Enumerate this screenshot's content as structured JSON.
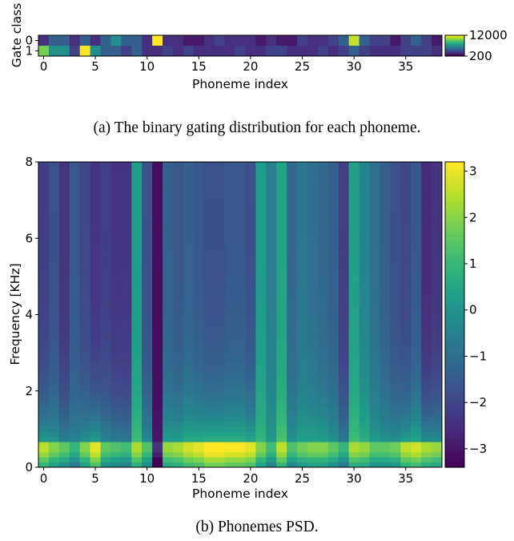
{
  "chart_data": [
    {
      "type": "heatmap",
      "caption": "(a) The binary gating distribution for each phoneme.",
      "xlabel": "Phoneme index",
      "ylabel": "Gate class",
      "x_ticks": [
        0,
        5,
        10,
        15,
        20,
        25,
        30,
        35
      ],
      "y_ticks": [
        0,
        1
      ],
      "colorbar": {
        "ticks": [
          12000,
          200
        ],
        "range": [
          200,
          12000
        ],
        "colormap": "viridis"
      },
      "rows": [
        [
          1800,
          3800,
          3800,
          1800,
          3800,
          1800,
          3800,
          6000,
          3800,
          3800,
          1800,
          12000,
          1800,
          1800,
          1000,
          1000,
          1800,
          2500,
          1800,
          1800,
          1800,
          1000,
          1800,
          1000,
          1000,
          2500,
          1800,
          1800,
          2500,
          3800,
          11000,
          3800,
          2500,
          2500,
          1000,
          2500,
          3800,
          2500,
          1000
        ],
        [
          9500,
          6000,
          6000,
          2500,
          12000,
          6000,
          3800,
          3800,
          2500,
          3800,
          1800,
          1800,
          2500,
          1800,
          2500,
          1800,
          1800,
          1800,
          1800,
          2500,
          1800,
          1800,
          2500,
          2500,
          1800,
          1800,
          1800,
          2500,
          1800,
          2500,
          3800,
          2500,
          1800,
          1800,
          1800,
          2500,
          2500,
          2500,
          1800
        ]
      ]
    },
    {
      "type": "heatmap",
      "caption": "(b) Phonemes PSD.",
      "xlabel": "Phoneme index",
      "ylabel": "Frequency [KHz]",
      "x_ticks": [
        0,
        5,
        10,
        15,
        20,
        25,
        30,
        35
      ],
      "y_ticks": [
        0,
        2,
        4,
        6,
        8
      ],
      "ylim": [
        0,
        8
      ],
      "colorbar": {
        "ticks": [
          3,
          2,
          1,
          0,
          -1,
          -2,
          -3
        ],
        "range": [
          -3.4,
          3.2
        ],
        "colormap": "viridis"
      },
      "phonemes": 39,
      "column_profile": {
        "low_band_peak": [
          2.2,
          1.6,
          1.2,
          0.6,
          1.6,
          2.6,
          1.2,
          1.0,
          0.8,
          2.0,
          1.0,
          -2.8,
          1.8,
          2.0,
          2.4,
          2.6,
          3.0,
          3.0,
          2.8,
          2.8,
          2.6,
          1.6,
          0.8,
          2.2,
          1.0,
          1.4,
          1.6,
          1.6,
          1.2,
          0.6,
          2.0,
          1.8,
          1.2,
          1.2,
          1.4,
          2.2,
          2.4,
          2.0,
          1.8
        ],
        "high_band": [
          -2.2,
          -1.8,
          -2.4,
          -1.6,
          -2.0,
          -2.4,
          -2.2,
          -2.4,
          -2.4,
          0.2,
          -1.8,
          -3.2,
          -1.4,
          -1.6,
          -1.4,
          -1.6,
          -1.8,
          -1.8,
          -1.6,
          -1.6,
          -1.8,
          0.2,
          -0.6,
          0.4,
          -1.2,
          -0.8,
          -1.0,
          -1.2,
          -1.4,
          -2.2,
          0.3,
          -0.4,
          -1.0,
          -1.4,
          -1.8,
          -2.0,
          -1.6,
          -2.6,
          -2.4
        ]
      }
    }
  ]
}
